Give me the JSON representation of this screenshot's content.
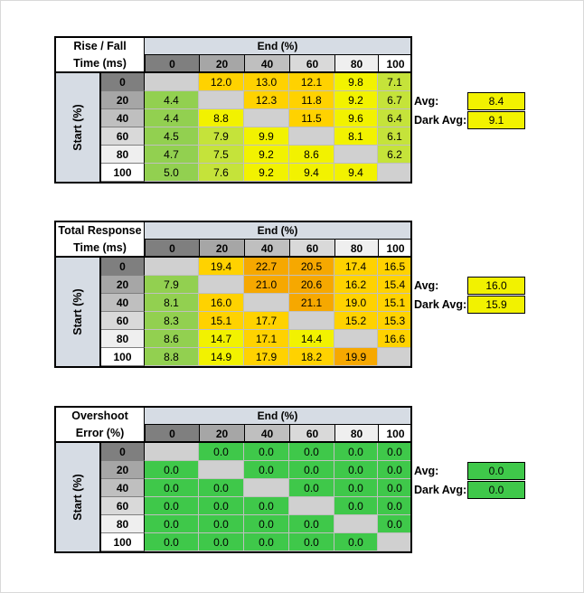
{
  "colors": {
    "gray": "#d0d0d0",
    "green_bright": "#92d050",
    "green_yellow": "#c5e33a",
    "yellow": "#f2f200",
    "light_orange": "#ffd200",
    "orange": "#f6a800",
    "overshoot_green": "#3fc84a"
  },
  "column_headers": [
    "0",
    "20",
    "40",
    "60",
    "80",
    "100"
  ],
  "row_headers": [
    "0",
    "20",
    "40",
    "60",
    "80",
    "100"
  ],
  "end_label": "End (%)",
  "start_label": "Start (%)",
  "tables": [
    {
      "title_line1": "Rise / Fall",
      "title_line2": "Time (ms)",
      "avg_label": "Avg:",
      "avg_value": "8.4",
      "dark_avg_label": "Dark Avg:",
      "dark_avg_value": "9.1",
      "rows": [
        [
          "",
          "12.0",
          "13.0",
          "12.1",
          "9.8",
          "7.1"
        ],
        [
          "4.4",
          "",
          "12.3",
          "11.8",
          "9.2",
          "6.7"
        ],
        [
          "4.4",
          "8.8",
          "",
          "11.5",
          "9.6",
          "6.4"
        ],
        [
          "4.5",
          "7.9",
          "9.9",
          "",
          "8.1",
          "6.1"
        ],
        [
          "4.7",
          "7.5",
          "9.2",
          "8.6",
          "",
          "6.2"
        ],
        [
          "5.0",
          "7.6",
          "9.2",
          "9.4",
          "9.4",
          ""
        ]
      ],
      "row_colors": [
        [
          "#d0d0d0",
          "#ffd200",
          "#ffd200",
          "#ffd200",
          "#f2f200",
          "#c5e33a"
        ],
        [
          "#92d050",
          "#d0d0d0",
          "#ffd200",
          "#ffd200",
          "#f2f200",
          "#c5e33a"
        ],
        [
          "#92d050",
          "#f2f200",
          "#d0d0d0",
          "#ffd200",
          "#f2f200",
          "#c5e33a"
        ],
        [
          "#92d050",
          "#c5e33a",
          "#f2f200",
          "#d0d0d0",
          "#f2f200",
          "#c5e33a"
        ],
        [
          "#92d050",
          "#c5e33a",
          "#f2f200",
          "#f2f200",
          "#d0d0d0",
          "#c5e33a"
        ],
        [
          "#92d050",
          "#c5e33a",
          "#f2f200",
          "#f2f200",
          "#f2f200",
          "#d0d0d0"
        ]
      ],
      "avg_color": "#f2f200"
    },
    {
      "title_line1": "Total Response",
      "title_line2": "Time (ms)",
      "avg_label": "Avg:",
      "avg_value": "16.0",
      "dark_avg_label": "Dark Avg:",
      "dark_avg_value": "15.9",
      "rows": [
        [
          "",
          "19.4",
          "22.7",
          "20.5",
          "17.4",
          "16.5"
        ],
        [
          "7.9",
          "",
          "21.0",
          "20.6",
          "16.2",
          "15.4"
        ],
        [
          "8.1",
          "16.0",
          "",
          "21.1",
          "19.0",
          "15.1"
        ],
        [
          "8.3",
          "15.1",
          "17.7",
          "",
          "15.2",
          "15.3"
        ],
        [
          "8.6",
          "14.7",
          "17.1",
          "14.4",
          "",
          "16.6"
        ],
        [
          "8.8",
          "14.9",
          "17.9",
          "18.2",
          "19.9",
          ""
        ]
      ],
      "row_colors": [
        [
          "#d0d0d0",
          "#ffd200",
          "#f6a800",
          "#f6a800",
          "#ffd200",
          "#ffd200"
        ],
        [
          "#92d050",
          "#d0d0d0",
          "#f6a800",
          "#f6a800",
          "#ffd200",
          "#ffd200"
        ],
        [
          "#92d050",
          "#ffd200",
          "#d0d0d0",
          "#f6a800",
          "#ffd200",
          "#ffd200"
        ],
        [
          "#92d050",
          "#ffd200",
          "#ffd200",
          "#d0d0d0",
          "#ffd200",
          "#ffd200"
        ],
        [
          "#92d050",
          "#f2f200",
          "#ffd200",
          "#f2f200",
          "#d0d0d0",
          "#ffd200"
        ],
        [
          "#92d050",
          "#f2f200",
          "#ffd200",
          "#ffd200",
          "#f6a800",
          "#d0d0d0"
        ]
      ],
      "avg_color": "#f2f200"
    },
    {
      "title_line1": "Overshoot",
      "title_line2": "Error (%)",
      "avg_label": "Avg:",
      "avg_value": "0.0",
      "dark_avg_label": "Dark Avg:",
      "dark_avg_value": "0.0",
      "rows": [
        [
          "",
          "0.0",
          "0.0",
          "0.0",
          "0.0",
          "0.0"
        ],
        [
          "0.0",
          "",
          "0.0",
          "0.0",
          "0.0",
          "0.0"
        ],
        [
          "0.0",
          "0.0",
          "",
          "0.0",
          "0.0",
          "0.0"
        ],
        [
          "0.0",
          "0.0",
          "0.0",
          "",
          "0.0",
          "0.0"
        ],
        [
          "0.0",
          "0.0",
          "0.0",
          "0.0",
          "",
          "0.0"
        ],
        [
          "0.0",
          "0.0",
          "0.0",
          "0.0",
          "0.0",
          ""
        ]
      ],
      "row_colors": [
        [
          "#d0d0d0",
          "#3fc84a",
          "#3fc84a",
          "#3fc84a",
          "#3fc84a",
          "#3fc84a"
        ],
        [
          "#3fc84a",
          "#d0d0d0",
          "#3fc84a",
          "#3fc84a",
          "#3fc84a",
          "#3fc84a"
        ],
        [
          "#3fc84a",
          "#3fc84a",
          "#d0d0d0",
          "#3fc84a",
          "#3fc84a",
          "#3fc84a"
        ],
        [
          "#3fc84a",
          "#3fc84a",
          "#3fc84a",
          "#d0d0d0",
          "#3fc84a",
          "#3fc84a"
        ],
        [
          "#3fc84a",
          "#3fc84a",
          "#3fc84a",
          "#3fc84a",
          "#d0d0d0",
          "#3fc84a"
        ],
        [
          "#3fc84a",
          "#3fc84a",
          "#3fc84a",
          "#3fc84a",
          "#3fc84a",
          "#d0d0d0"
        ]
      ],
      "avg_color": "#3fc84a"
    }
  ]
}
